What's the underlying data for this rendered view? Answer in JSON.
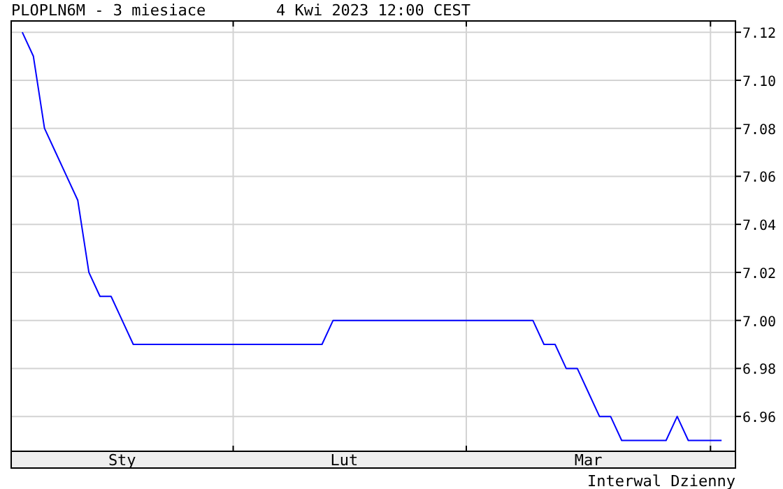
{
  "chart_data": {
    "type": "line",
    "title": "PLOPLN6M - 3 miesiace",
    "subtitle": "4 Kwi 2023 12:00 CEST",
    "annotations": [
      "Interwal Dzienny"
    ],
    "categories": [
      null,
      null,
      null,
      null,
      null,
      null,
      null,
      null,
      null,
      "Sty",
      null,
      null,
      null,
      null,
      null,
      null,
      null,
      null,
      null,
      null,
      null,
      null,
      null,
      null,
      null,
      null,
      null,
      null,
      null,
      "Lut",
      null,
      null,
      null,
      null,
      null,
      null,
      null,
      null,
      null,
      null,
      null,
      null,
      null,
      null,
      null,
      null,
      null,
      null,
      null,
      null,
      null,
      "Mar",
      null,
      null,
      null,
      null,
      null,
      null,
      null,
      null,
      null,
      null,
      null,
      null
    ],
    "series": [
      {
        "color": "#0000ff",
        "values": [
          7.12,
          7.11,
          7.08,
          7.07,
          7.06,
          7.05,
          7.02,
          7.01,
          7.01,
          7.0,
          6.99,
          6.99,
          6.99,
          6.99,
          6.99,
          6.99,
          6.99,
          6.99,
          6.99,
          6.99,
          6.99,
          6.99,
          6.99,
          6.99,
          6.99,
          6.99,
          6.99,
          6.99,
          7.0,
          7.0,
          7.0,
          7.0,
          7.0,
          7.0,
          7.0,
          7.0,
          7.0,
          7.0,
          7.0,
          7.0,
          7.0,
          7.0,
          7.0,
          7.0,
          7.0,
          7.0,
          7.0,
          6.99,
          6.99,
          6.98,
          6.98,
          6.97,
          6.96,
          6.96,
          6.95,
          6.95,
          6.95,
          6.95,
          6.95,
          6.96,
          6.95,
          6.95,
          6.95,
          6.95
        ]
      }
    ],
    "ylim": [
      6.9455,
      7.1247
    ],
    "yticks": [
      {
        "value": 6.96,
        "label": "6.96"
      },
      {
        "value": 6.98,
        "label": "6.98"
      },
      {
        "value": 7.0,
        "label": "7.00"
      },
      {
        "value": 7.02,
        "label": "7.02"
      },
      {
        "value": 7.04,
        "label": "7.04"
      },
      {
        "value": 7.06,
        "label": "7.06"
      },
      {
        "value": 7.08,
        "label": "7.08"
      },
      {
        "value": 7.1,
        "label": "7.10"
      },
      {
        "value": 7.12,
        "label": "7.12"
      }
    ],
    "grid": true,
    "marker": "none",
    "line_style": "solid"
  }
}
